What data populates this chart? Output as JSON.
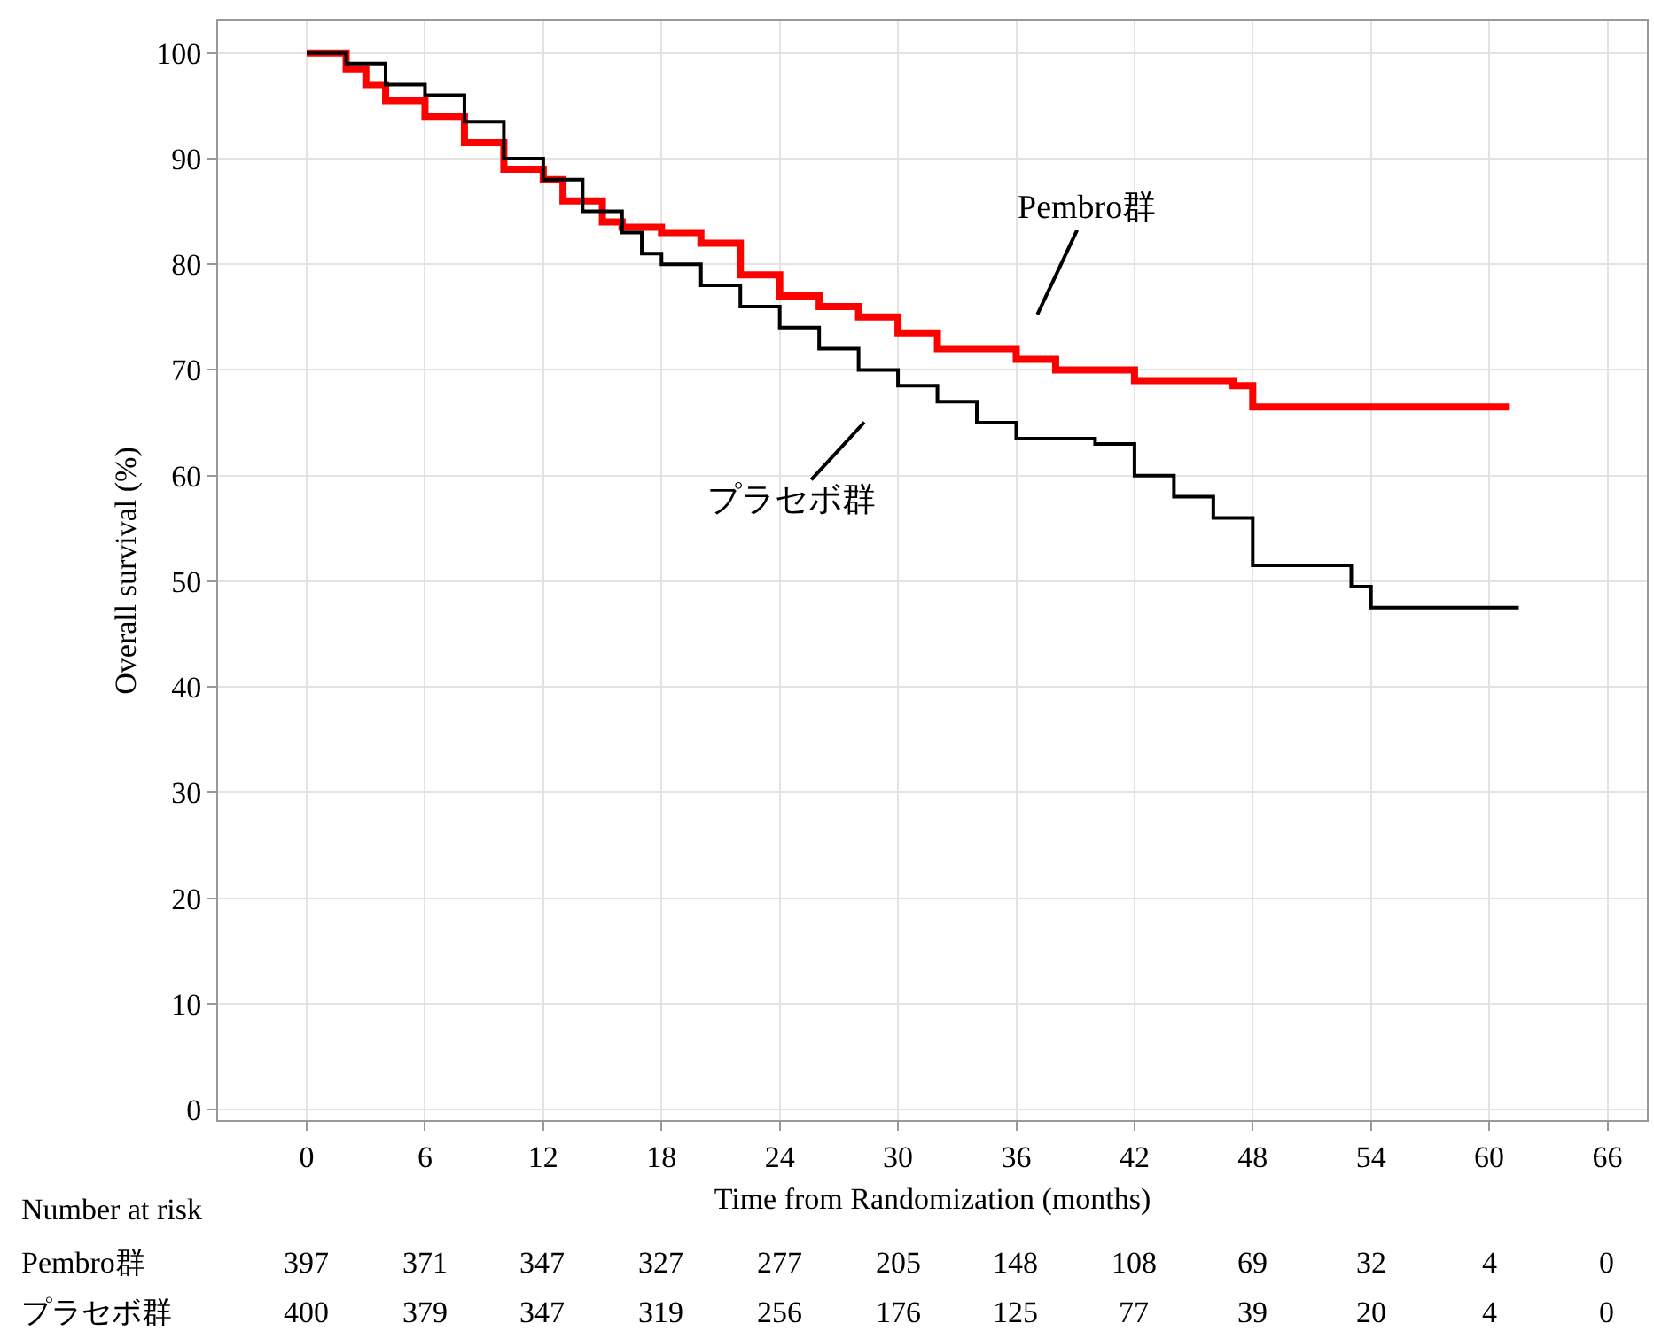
{
  "chart_data": {
    "type": "step",
    "xlabel": "Time from Randomization (months)",
    "ylabel": "Overall survival (%)",
    "xlim": [
      -4.5,
      68
    ],
    "xticks": [
      0,
      6,
      12,
      18,
      24,
      30,
      36,
      42,
      48,
      54,
      60,
      66
    ],
    "ylim": [
      -1,
      103
    ],
    "yticks": [
      0,
      10,
      20,
      30,
      40,
      50,
      60,
      70,
      80,
      90,
      100
    ],
    "grid": true,
    "series": [
      {
        "color": "#ff0000",
        "x": [
          0,
          2,
          3,
          4,
          6,
          8,
          10,
          12,
          13,
          15,
          16,
          18,
          20,
          22,
          24,
          26,
          28,
          30,
          32,
          36,
          38,
          42,
          47,
          48,
          61
        ],
        "values": [
          100,
          98.5,
          97,
          95.5,
          94,
          91.5,
          89,
          88,
          86,
          84,
          83.5,
          83,
          82,
          79,
          77,
          76,
          75,
          73.5,
          72,
          71,
          70,
          69,
          68.5,
          66.5,
          66.5
        ]
      },
      {
        "color": "#000000",
        "x": [
          0,
          2,
          4,
          6,
          8,
          10,
          12,
          14,
          16,
          17,
          18,
          20,
          22,
          24,
          26,
          28,
          30,
          32,
          34,
          36,
          40,
          42,
          44,
          46,
          48,
          53,
          54,
          61.5
        ],
        "values": [
          100,
          99,
          97,
          96,
          93.5,
          90,
          88,
          85,
          83,
          81,
          80,
          78,
          76,
          74,
          72,
          70,
          68.5,
          67,
          65,
          63.5,
          63,
          60,
          58,
          56,
          51.5,
          49.5,
          47.5,
          47.5
        ]
      }
    ],
    "annotations": [
      "Number at risk",
      "Pembro群 397 371 347 327 277 205 148 108 69 32 4 0",
      "プラセボ群 400 379 347 319 256 176 125 77 39 20 4 0",
      {
        "text": "Pembro群",
        "x": 36,
        "y": 71
      },
      {
        "text": "プラセボ群",
        "x": 30,
        "y": 68.5
      }
    ]
  }
}
